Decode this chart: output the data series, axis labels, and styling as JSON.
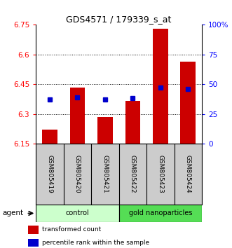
{
  "title": "GDS4571 / 179339_s_at",
  "samples": [
    "GSM805419",
    "GSM805420",
    "GSM805421",
    "GSM805422",
    "GSM805423",
    "GSM805424"
  ],
  "red_values": [
    6.22,
    6.435,
    6.285,
    6.365,
    6.73,
    6.565
  ],
  "blue_values": [
    6.375,
    6.385,
    6.372,
    6.382,
    6.435,
    6.425
  ],
  "ymin": 6.15,
  "ymax": 6.75,
  "yticks": [
    6.15,
    6.3,
    6.45,
    6.6,
    6.75
  ],
  "ytick_labels": [
    "6.15",
    "6.3",
    "6.45",
    "6.6",
    "6.75"
  ],
  "right_yticks": [
    0,
    25,
    50,
    75,
    100
  ],
  "right_ytick_labels": [
    "0",
    "25",
    "50",
    "75",
    "100%"
  ],
  "grid_values": [
    6.3,
    6.45,
    6.6
  ],
  "groups": [
    {
      "label": "control",
      "indices": [
        0,
        1,
        2
      ],
      "color": "#ccffcc"
    },
    {
      "label": "gold nanoparticles",
      "indices": [
        3,
        4,
        5
      ],
      "color": "#55dd55"
    }
  ],
  "agent_label": "agent",
  "legend_red": "transformed count",
  "legend_blue": "percentile rank within the sample",
  "bar_color": "#cc0000",
  "blue_color": "#0000cc",
  "bar_bottom": 6.15,
  "bar_width": 0.55,
  "label_bg": "#cccccc",
  "sep_color": "#888888"
}
